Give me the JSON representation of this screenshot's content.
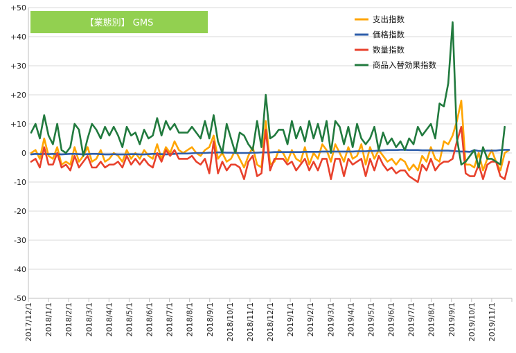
{
  "chart_data": {
    "type": "line",
    "title": "【業態別】 GMS",
    "title_badge_color": "#92D050",
    "ylim": [
      -50,
      50
    ],
    "y_ticks": [
      "+50",
      "+40",
      "+30",
      "+20",
      "+10",
      "0",
      "-10",
      "-20",
      "-30",
      "-40",
      "-50"
    ],
    "x_tick_labels": [
      "2017/12/1",
      "2018/1/1",
      "2018/2/1",
      "2018/3/1",
      "2018/4/1",
      "2018/5/1",
      "2018/6/1",
      "2018/7/1",
      "2018/8/1",
      "2018/9/1",
      "2018/10/1",
      "2018/11/1",
      "2018/12/1",
      "2019/1/1",
      "2019/2/1",
      "2019/3/1",
      "2019/4/1",
      "2019/5/1",
      "2019/6/1",
      "2019/7/1",
      "2019/8/1",
      "2019/9/1",
      "2019/10/1",
      "2019/11/1"
    ],
    "grid": true,
    "legend_position": "top-right",
    "series": [
      {
        "name": "支出指数",
        "color": "#FFA500",
        "values": [
          0,
          1,
          -2,
          5,
          -1,
          -2,
          2,
          -4,
          -3,
          -4,
          2,
          -3,
          -1,
          2,
          -3,
          -2,
          1,
          -3,
          -2,
          0,
          -1,
          -3,
          1,
          -2,
          0,
          -2,
          1,
          -1,
          -2,
          3,
          -2,
          2,
          0,
          4,
          1,
          0,
          1,
          2,
          0,
          -1,
          1,
          2,
          6,
          -2,
          0,
          -3,
          -2,
          1,
          -2,
          -5,
          -1,
          2,
          -4,
          -5,
          11,
          -4,
          -3,
          1,
          0,
          -3,
          1,
          -2,
          -3,
          2,
          -4,
          0,
          -2,
          3,
          1,
          -3,
          3,
          0,
          -3,
          2,
          -2,
          -1,
          3,
          -4,
          2,
          -2,
          1,
          -1,
          -3,
          -2,
          -4,
          -2,
          -3,
          -6,
          -4,
          -6,
          -1,
          -3,
          2,
          -2,
          -3,
          4,
          3,
          6,
          11,
          18,
          -4,
          -4,
          -5,
          0,
          -6,
          -2,
          1,
          -3,
          -6,
          0,
          1
        ]
      },
      {
        "name": "価格指数",
        "color": "#2E5EAA",
        "values": [
          -0.5,
          -0.3,
          -0.4,
          -0.3,
          -0.4,
          -0.3,
          -0.4,
          -0.5,
          -0.4,
          -0.3,
          -0.3,
          -0.4,
          -0.5,
          -0.4,
          -0.3,
          -0.3,
          -0.4,
          -0.5,
          -0.5,
          -0.4,
          -0.5,
          -0.5,
          -0.5,
          -0.4,
          -0.4,
          -0.5,
          -0.5,
          -0.4,
          -0.3,
          -0.3,
          -0.4,
          -0.5,
          -0.4,
          -0.3,
          -0.2,
          -0.2,
          -0.2,
          -0.1,
          0,
          0,
          0,
          0.1,
          0.1,
          0.2,
          0.2,
          0.1,
          0.1,
          0,
          0,
          0,
          0,
          0.1,
          0.1,
          0.2,
          0.2,
          0.2,
          0.3,
          0.3,
          0.3,
          0.3,
          0.3,
          0.3,
          0.3,
          0.4,
          0.4,
          0.4,
          0.4,
          0.5,
          0.5,
          0.5,
          0.5,
          0.5,
          0.5,
          0.5,
          0.5,
          0.6,
          0.6,
          0.6,
          0.7,
          0.7,
          0.8,
          0.9,
          1,
          1,
          1,
          1.1,
          1.1,
          1,
          1,
          1,
          0.9,
          0.9,
          0.9,
          0.8,
          0.8,
          0.8,
          0.8,
          0.7,
          0.6,
          0.5,
          0.5,
          0.4,
          1,
          0.7,
          0.7,
          0.8,
          0.8,
          0.8,
          1,
          1.1,
          1.1
        ]
      },
      {
        "name": "数量指数",
        "color": "#E8412C",
        "values": [
          -3,
          -2,
          -5,
          2,
          -4,
          -4,
          0,
          -5,
          -4,
          -6,
          -1,
          -5,
          -3,
          -1,
          -5,
          -5,
          -3,
          -5,
          -4,
          -4,
          -3,
          -5,
          -1,
          -4,
          -2,
          -4,
          -2,
          -4,
          -5,
          0,
          -3,
          1,
          -1,
          1,
          -2,
          -2,
          -2,
          -1,
          -3,
          -4,
          -2,
          -7,
          4,
          -7,
          -3,
          -6,
          -4,
          -4,
          -5,
          -9,
          -3,
          -1,
          -8,
          -7,
          8,
          -6,
          -2,
          -2,
          -2,
          -4,
          -3,
          -6,
          -4,
          -2,
          -6,
          -3,
          -6,
          -2,
          -2,
          -9,
          -2,
          -2,
          -8,
          -2,
          -4,
          -3,
          -2,
          -8,
          -2,
          -6,
          -1,
          -4,
          -6,
          -5,
          -7,
          -6,
          -6,
          -8,
          -9,
          -10,
          -4,
          -6,
          -2,
          -6,
          -4,
          -3,
          -3,
          -2,
          4,
          9,
          -7,
          -8,
          -8,
          -4,
          -9,
          -4,
          -3,
          -3,
          -8,
          -9,
          -3
        ]
      },
      {
        "name": "商品入替効果指数",
        "color": "#217A3E",
        "values": [
          7,
          10,
          5,
          13,
          6,
          3,
          10,
          1,
          0,
          2,
          10,
          8,
          -1,
          5,
          10,
          8,
          5,
          9,
          6,
          9,
          6,
          2,
          9,
          6,
          7,
          3,
          8,
          5,
          6,
          12,
          6,
          11,
          8,
          10,
          7,
          7,
          7,
          9,
          7,
          5,
          11,
          5,
          13,
          4,
          0,
          10,
          5,
          0,
          7,
          6,
          3,
          1,
          11,
          2,
          20,
          5,
          6,
          8,
          8,
          3,
          11,
          5,
          9,
          4,
          11,
          5,
          10,
          4,
          11,
          0,
          11,
          9,
          3,
          9,
          2,
          10,
          5,
          3,
          5,
          9,
          1,
          7,
          3,
          5,
          2,
          4,
          1,
          5,
          3,
          9,
          6,
          8,
          10,
          5,
          17,
          16,
          24,
          45,
          5,
          -4,
          -3,
          -1,
          1,
          -5,
          2,
          -2,
          -2,
          -3,
          -4,
          9
        ]
      }
    ]
  }
}
